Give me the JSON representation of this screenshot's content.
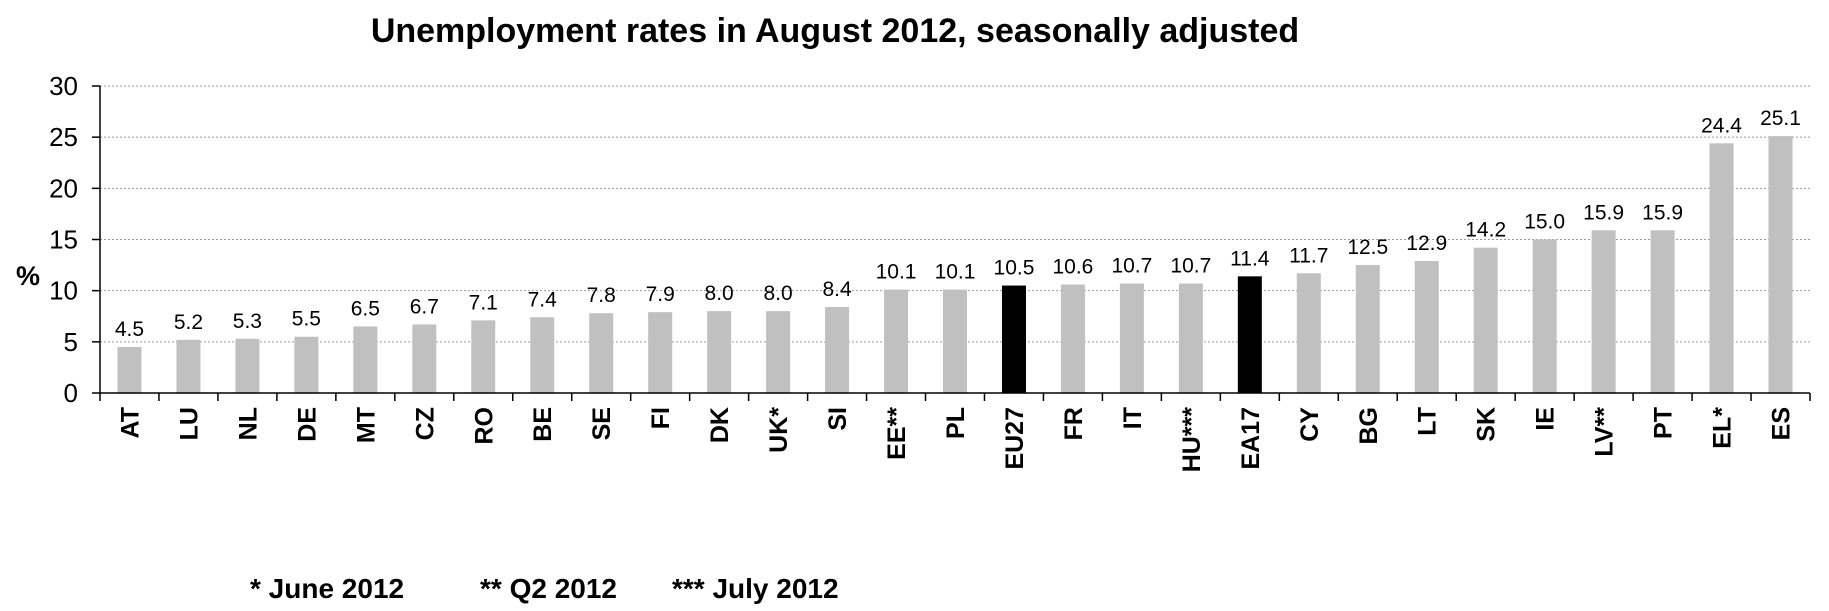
{
  "chart_data": {
    "type": "bar",
    "title": "Unemployment rates in August 2012, seasonally adjusted",
    "ylabel": "%",
    "ylim": [
      0,
      30
    ],
    "yticks": [
      "0",
      "5",
      "10",
      "15",
      "20",
      "25",
      "30"
    ],
    "ytick_values": [
      0,
      5,
      10,
      15,
      20,
      25,
      30
    ],
    "grid": true,
    "categories": [
      "AT",
      "LU",
      "NL",
      "DE",
      "MT",
      "CZ",
      "RO",
      "BE",
      "SE",
      "FI",
      "DK",
      "UK*",
      "SI",
      "EE**",
      "PL",
      "EU27",
      "FR",
      "IT",
      "HU***",
      "EA17",
      "CY",
      "BG",
      "LT",
      "SK",
      "IE",
      "LV**",
      "PT",
      "EL*",
      "ES"
    ],
    "values": [
      4.5,
      5.2,
      5.3,
      5.5,
      6.5,
      6.7,
      7.1,
      7.4,
      7.8,
      7.9,
      8.0,
      8.0,
      8.4,
      10.1,
      10.1,
      10.5,
      10.6,
      10.7,
      10.7,
      11.4,
      11.7,
      12.5,
      12.9,
      14.2,
      15.0,
      15.9,
      15.9,
      24.4,
      25.1
    ],
    "value_labels": [
      "4.5",
      "5.2",
      "5.3",
      "5.5",
      "6.5",
      "6.7",
      "7.1",
      "7.4",
      "7.8",
      "7.9",
      "8.0",
      "8.0",
      "8.4",
      "10.1",
      "10.1",
      "10.5",
      "10.6",
      "10.7",
      "10.7",
      "11.4",
      "11.7",
      "12.5",
      "12.9",
      "14.2",
      "15.0",
      "15.9",
      "15.9",
      "24.4",
      "25.1"
    ],
    "highlighted": [
      "EU27",
      "EA17"
    ],
    "colors": {
      "bar": "#c0c0c0",
      "highlight": "#000000",
      "grid": "#9a9a9a",
      "axis": "#000000"
    },
    "footnotes": [
      "* June 2012",
      "** Q2 2012",
      "*** July 2012"
    ]
  }
}
